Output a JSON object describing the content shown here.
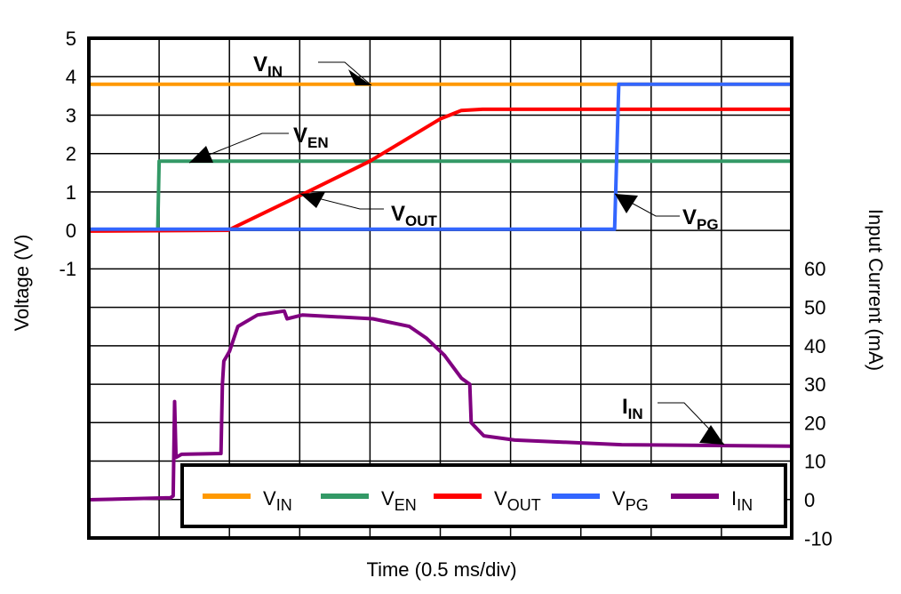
{
  "chart_data": {
    "type": "line",
    "xlabel": "Time (0.5 ms/div)",
    "ylabel": "Voltage (V)",
    "y2label": "Input Current (mA)",
    "x_unit": "ms",
    "xlim": [
      0,
      5
    ],
    "ylim": [
      -2,
      5
    ],
    "yticks": [
      5,
      4,
      3,
      2,
      1,
      0,
      -1
    ],
    "y2lim": [
      -10,
      60
    ],
    "y2ticks": [
      60,
      50,
      40,
      30,
      20,
      10,
      0,
      -10
    ],
    "grid": true,
    "legend": "bottom",
    "series": [
      {
        "key": "vin",
        "name": {
          "main": "V",
          "sub": "IN"
        },
        "color": "#FF9900",
        "axis": "left",
        "points": [
          [
            0,
            3.8
          ],
          [
            5,
            3.8
          ]
        ]
      },
      {
        "key": "ven",
        "name": {
          "main": "V",
          "sub": "EN"
        },
        "color": "#339966",
        "axis": "left",
        "points": [
          [
            0,
            0
          ],
          [
            0.49,
            0
          ],
          [
            0.5,
            1.8
          ],
          [
            5,
            1.8
          ]
        ]
      },
      {
        "key": "vout",
        "name": {
          "main": "V",
          "sub": "OUT"
        },
        "color": "#FF0000",
        "axis": "left",
        "points": [
          [
            0,
            -0.02
          ],
          [
            0.99,
            0
          ],
          [
            1.5,
            0.9
          ],
          [
            2.0,
            1.8
          ],
          [
            2.5,
            2.9
          ],
          [
            2.65,
            3.12
          ],
          [
            2.8,
            3.15
          ],
          [
            5,
            3.15
          ]
        ]
      },
      {
        "key": "vpg",
        "name": {
          "main": "V",
          "sub": "PG"
        },
        "color": "#3366FF",
        "axis": "left",
        "points": [
          [
            0,
            0.03
          ],
          [
            3.74,
            0.03
          ],
          [
            3.77,
            3.8
          ],
          [
            5,
            3.8
          ]
        ]
      },
      {
        "key": "iin",
        "name": {
          "main": "I",
          "sub": "IN"
        },
        "color": "#800080",
        "axis": "right",
        "points": [
          [
            0,
            0
          ],
          [
            0.58,
            0.5
          ],
          [
            0.6,
            1
          ],
          [
            0.61,
            25.5
          ],
          [
            0.62,
            11
          ],
          [
            0.66,
            11.8
          ],
          [
            0.94,
            12
          ],
          [
            0.95,
            30
          ],
          [
            0.96,
            36
          ],
          [
            1.0,
            38.5
          ],
          [
            1.06,
            45
          ],
          [
            1.2,
            48
          ],
          [
            1.39,
            49
          ],
          [
            1.41,
            47
          ],
          [
            1.52,
            48
          ],
          [
            2.02,
            47
          ],
          [
            2.28,
            45
          ],
          [
            2.4,
            42
          ],
          [
            2.53,
            37.5
          ],
          [
            2.65,
            31.6
          ],
          [
            2.71,
            30
          ],
          [
            2.72,
            20
          ],
          [
            2.81,
            16.6
          ],
          [
            3.03,
            15.5
          ],
          [
            3.79,
            14.3
          ],
          [
            5,
            13.9
          ]
        ]
      }
    ],
    "annotations": [
      {
        "series": "vin",
        "label": {
          "main": "V",
          "sub": "IN"
        }
      },
      {
        "series": "ven",
        "label": {
          "main": "V",
          "sub": "EN"
        }
      },
      {
        "series": "vout",
        "label": {
          "main": "V",
          "sub": "OUT"
        }
      },
      {
        "series": "vpg",
        "label": {
          "main": "V",
          "sub": "PG"
        }
      },
      {
        "series": "iin",
        "label": {
          "main": "I",
          "sub": "IN"
        }
      }
    ]
  }
}
